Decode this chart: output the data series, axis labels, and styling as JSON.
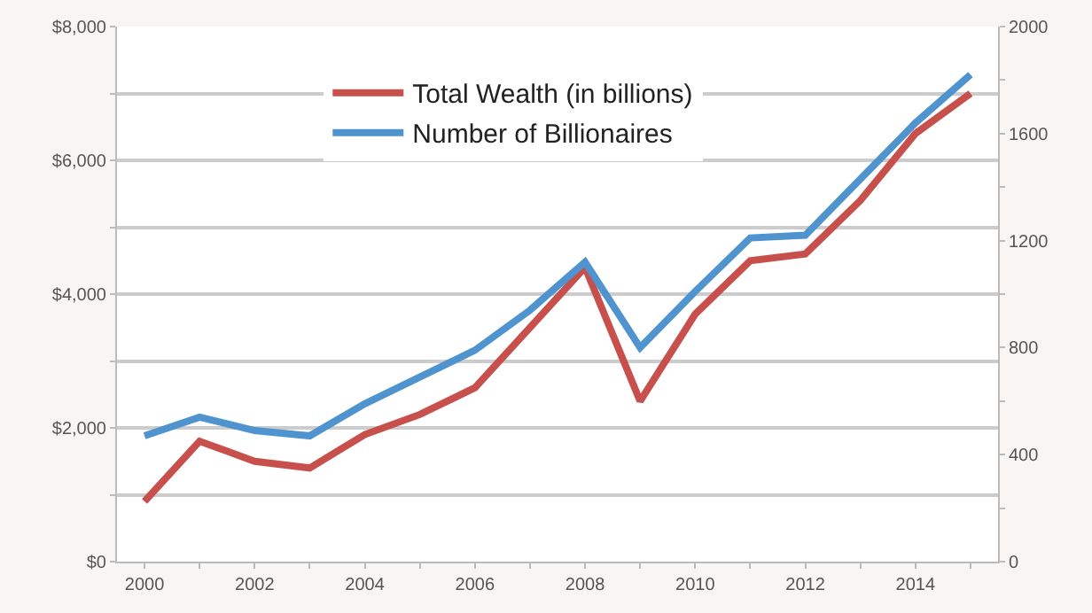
{
  "chart_data": {
    "type": "line",
    "x": [
      2000,
      2001,
      2002,
      2003,
      2004,
      2005,
      2006,
      2007,
      2008,
      2009,
      2010,
      2011,
      2012,
      2013,
      2014,
      2015
    ],
    "series": [
      {
        "name": "Total Wealth (in billions)",
        "color": "#c8504c",
        "values": [
          900,
          1800,
          1500,
          1400,
          1900,
          2200,
          2600,
          3500,
          4400,
          2400,
          3700,
          4500,
          4600,
          5400,
          6400,
          7000
        ]
      },
      {
        "name": "Number of Billionaires",
        "color": "#4f93cf",
        "axis": "y2",
        "values": [
          470,
          540,
          490,
          470,
          590,
          690,
          790,
          940,
          1120,
          800,
          1010,
          1210,
          1220,
          1430,
          1640,
          1820
        ]
      }
    ],
    "xlim": [
      1999.5,
      2015.5
    ],
    "xticks": [
      2000,
      {
        "value": 2001,
        "label": null
      },
      2002,
      {
        "value": 2003,
        "label": null
      },
      2004,
      {
        "value": 2005,
        "label": null
      },
      2006,
      {
        "value": 2007,
        "label": null
      },
      2008,
      {
        "value": 2009,
        "label": null
      },
      2010,
      {
        "value": 2011,
        "label": null
      },
      2012,
      {
        "value": 2013,
        "label": null
      },
      2014,
      {
        "value": 2015,
        "label": null
      }
    ],
    "ylim": [
      0,
      8000
    ],
    "yticks": [
      {
        "value": 0,
        "label": "$0"
      },
      {
        "value": 1000,
        "label": null
      },
      {
        "value": 2000,
        "label": "$2,000"
      },
      {
        "value": 3000,
        "label": null
      },
      {
        "value": 4000,
        "label": "$4,000"
      },
      {
        "value": 5000,
        "label": null
      },
      {
        "value": 6000,
        "label": "$6,000"
      },
      {
        "value": 7000,
        "label": null
      },
      {
        "value": 8000,
        "label": "$8,000"
      }
    ],
    "y2lim": [
      0,
      2000
    ],
    "y2ticks": [
      0,
      {
        "value": 200,
        "label": null
      },
      400,
      {
        "value": 600,
        "label": null
      },
      800,
      {
        "value": 1000,
        "label": null
      },
      1200,
      {
        "value": 1400,
        "label": null
      },
      1600,
      {
        "value": 1800,
        "label": null
      },
      2000
    ],
    "grid": "y",
    "legend": "top",
    "marker": "none",
    "line_style": "solid"
  }
}
